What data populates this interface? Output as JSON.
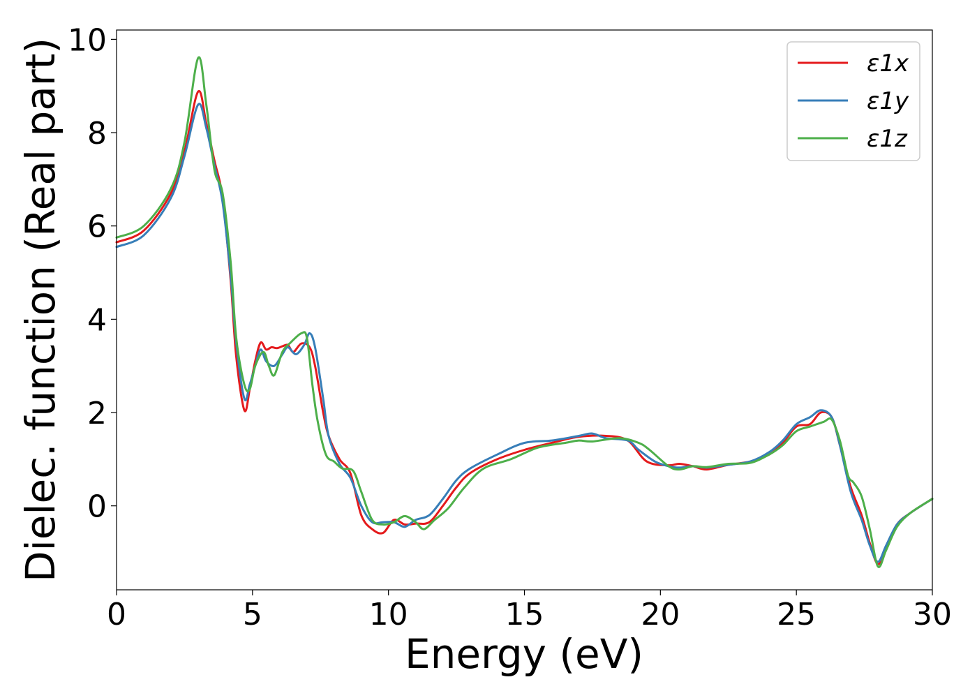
{
  "chart_data": {
    "type": "line",
    "xlabel": "Energy (eV)",
    "ylabel": "Dielec. function (Real part)",
    "xlim": [
      0,
      30
    ],
    "ylim": [
      -1.8,
      10.2
    ],
    "xticks": [
      0,
      5,
      10,
      15,
      20,
      25,
      30
    ],
    "yticks": [
      0,
      2,
      4,
      6,
      8,
      10
    ],
    "grid": false,
    "legend_position": "top-right",
    "series": [
      {
        "name": "ε1x",
        "color": "#e41a1c",
        "x": [
          0,
          1,
          2,
          2.5,
          3.0,
          3.3,
          3.6,
          3.9,
          4.2,
          4.4,
          4.7,
          4.9,
          5.1,
          5.3,
          5.5,
          5.7,
          5.9,
          6.1,
          6.3,
          6.5,
          6.8,
          7.1,
          7.3,
          7.6,
          7.8,
          8.2,
          8.6,
          9.0,
          9.4,
          9.8,
          10.2,
          10.6,
          11.0,
          11.5,
          12.0,
          12.5,
          13.0,
          14.0,
          15.0,
          16.0,
          17.0,
          18.0,
          18.8,
          19.5,
          20.3,
          20.7,
          21.2,
          21.7,
          22.5,
          23.3,
          24.0,
          24.5,
          25.0,
          25.5,
          25.9,
          26.3,
          26.6,
          27.0,
          27.4,
          27.7,
          28.0,
          28.3,
          28.7,
          29.2,
          30.0
        ],
        "values": [
          5.65,
          5.9,
          6.7,
          7.6,
          8.88,
          8.2,
          7.4,
          6.6,
          4.8,
          3.2,
          2.05,
          2.5,
          3.1,
          3.5,
          3.35,
          3.4,
          3.38,
          3.42,
          3.45,
          3.3,
          3.48,
          3.4,
          3.0,
          2.0,
          1.5,
          1.0,
          0.7,
          -0.2,
          -0.5,
          -0.58,
          -0.3,
          -0.4,
          -0.38,
          -0.35,
          0.0,
          0.4,
          0.7,
          1.0,
          1.2,
          1.35,
          1.48,
          1.5,
          1.4,
          0.95,
          0.87,
          0.9,
          0.85,
          0.78,
          0.88,
          0.95,
          1.1,
          1.35,
          1.7,
          1.75,
          2.0,
          1.9,
          1.3,
          0.4,
          -0.2,
          -0.8,
          -1.25,
          -0.9,
          -0.4,
          -0.15,
          0.15
        ]
      },
      {
        "name": "ε1y",
        "color": "#377eb8",
        "x": [
          0,
          1,
          2,
          2.5,
          3.0,
          3.3,
          3.6,
          3.9,
          4.2,
          4.4,
          4.7,
          4.9,
          5.1,
          5.3,
          5.5,
          5.8,
          6.1,
          6.3,
          6.6,
          6.9,
          7.1,
          7.3,
          7.6,
          7.8,
          8.2,
          8.6,
          9.0,
          9.4,
          9.8,
          10.2,
          10.6,
          11.0,
          11.5,
          12.0,
          12.5,
          13.0,
          14.0,
          15.0,
          16.0,
          17.0,
          17.5,
          18.0,
          18.8,
          19.2,
          19.8,
          20.3,
          20.7,
          21.2,
          21.7,
          22.5,
          23.3,
          24.0,
          24.5,
          25.0,
          25.5,
          25.9,
          26.3,
          26.6,
          27.0,
          27.4,
          27.7,
          28.0,
          28.3,
          28.7,
          29.2,
          30.0
        ],
        "values": [
          5.55,
          5.8,
          6.6,
          7.5,
          8.6,
          8.1,
          7.3,
          6.5,
          4.9,
          3.5,
          2.3,
          2.6,
          3.0,
          3.35,
          3.1,
          3.0,
          3.25,
          3.4,
          3.25,
          3.45,
          3.7,
          3.4,
          2.3,
          1.5,
          0.9,
          0.6,
          0.0,
          -0.35,
          -0.35,
          -0.35,
          -0.45,
          -0.3,
          -0.2,
          0.15,
          0.55,
          0.8,
          1.1,
          1.35,
          1.4,
          1.5,
          1.55,
          1.45,
          1.4,
          1.2,
          0.95,
          0.85,
          0.82,
          0.85,
          0.82,
          0.88,
          0.95,
          1.15,
          1.4,
          1.75,
          1.9,
          2.05,
          1.9,
          1.3,
          0.3,
          -0.3,
          -0.85,
          -1.2,
          -0.85,
          -0.4,
          -0.15,
          0.15
        ]
      },
      {
        "name": "ε1z",
        "color": "#4daf4a",
        "x": [
          0,
          1,
          2,
          2.5,
          3.0,
          3.3,
          3.6,
          3.9,
          4.2,
          4.4,
          4.7,
          4.9,
          5.1,
          5.4,
          5.6,
          5.8,
          6.1,
          6.4,
          6.8,
          7.0,
          7.2,
          7.4,
          7.7,
          8.0,
          8.3,
          8.7,
          9.0,
          9.4,
          9.8,
          10.2,
          10.6,
          11.0,
          11.3,
          11.7,
          12.2,
          12.8,
          13.5,
          14.5,
          15.5,
          16.5,
          17.0,
          17.5,
          18.5,
          19.2,
          19.6,
          20.3,
          20.7,
          21.2,
          21.7,
          22.5,
          23.3,
          24.0,
          24.5,
          25.0,
          25.5,
          26.0,
          26.3,
          26.6,
          26.9,
          27.1,
          27.4,
          27.7,
          28.0,
          28.3,
          28.7,
          29.2,
          30.0
        ],
        "values": [
          5.75,
          6.0,
          6.8,
          7.8,
          9.6,
          8.6,
          7.2,
          6.7,
          5.2,
          3.6,
          2.6,
          2.5,
          3.0,
          3.3,
          3.0,
          2.8,
          3.3,
          3.5,
          3.7,
          3.6,
          2.6,
          1.8,
          1.1,
          0.95,
          0.8,
          0.75,
          0.3,
          -0.3,
          -0.4,
          -0.35,
          -0.22,
          -0.35,
          -0.5,
          -0.3,
          -0.05,
          0.4,
          0.8,
          1.0,
          1.25,
          1.35,
          1.4,
          1.38,
          1.45,
          1.35,
          1.2,
          0.85,
          0.78,
          0.85,
          0.83,
          0.9,
          0.92,
          1.1,
          1.3,
          1.6,
          1.7,
          1.8,
          1.85,
          1.4,
          0.65,
          0.5,
          0.2,
          -0.5,
          -1.3,
          -0.95,
          -0.45,
          -0.15,
          0.15
        ]
      }
    ]
  }
}
